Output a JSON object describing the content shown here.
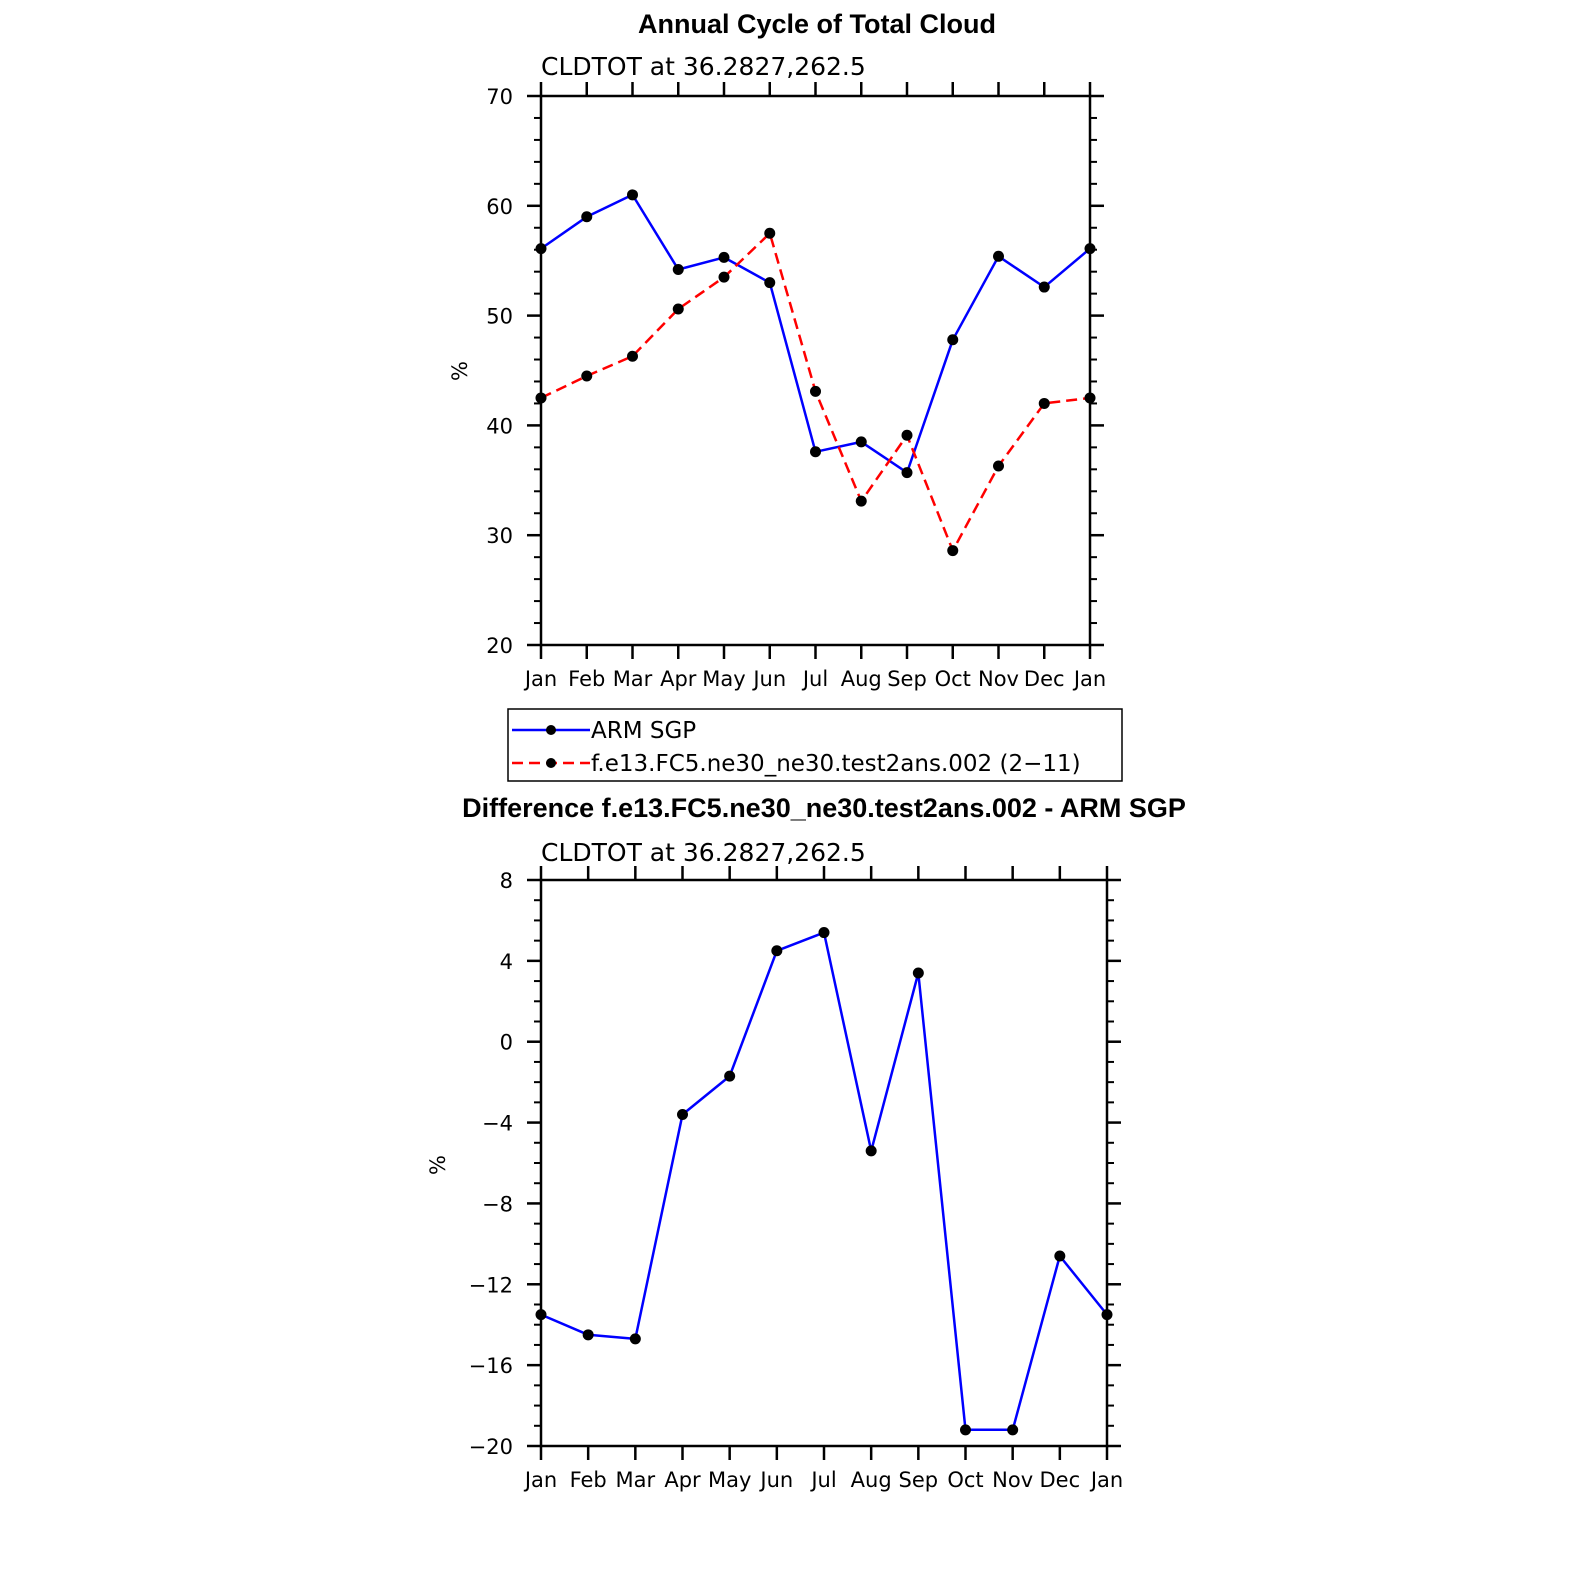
{
  "chart_data": [
    {
      "type": "line",
      "title": "Annual Cycle of Total Cloud",
      "subtitle": "CLDTOT at 36.2827,262.5",
      "ylabel": "%",
      "ylim": [
        20,
        70
      ],
      "yticks": [
        "20",
        "30",
        "40",
        "50",
        "60",
        "70"
      ],
      "categories": [
        "Jan",
        "Feb",
        "Mar",
        "Apr",
        "May",
        "Jun",
        "Jul",
        "Aug",
        "Sep",
        "Oct",
        "Nov",
        "Dec",
        "Jan"
      ],
      "series": [
        {
          "name": "ARM SGP",
          "color": "#0000ff",
          "dashed": false,
          "values": [
            56.1,
            59.0,
            61.0,
            54.2,
            55.3,
            53.0,
            37.6,
            38.5,
            35.7,
            47.8,
            55.4,
            52.6,
            56.1
          ]
        },
        {
          "name": "f.e13.FC5.ne30_ne30.test2ans.002 (2−11)",
          "color": "#ff0000",
          "dashed": true,
          "values": [
            42.5,
            44.5,
            46.3,
            50.6,
            53.5,
            57.5,
            43.1,
            33.1,
            39.1,
            28.6,
            36.3,
            42.0,
            42.5
          ]
        }
      ]
    },
    {
      "type": "line",
      "title": "Difference f.e13.FC5.ne30_ne30.test2ans.002 - ARM SGP",
      "subtitle": "CLDTOT at 36.2827,262.5",
      "ylabel": "%",
      "ylim": [
        -20,
        8
      ],
      "yticks": [
        "−20",
        "−16",
        "−12",
        "−8",
        "−4",
        "0",
        "4",
        "8"
      ],
      "categories": [
        "Jan",
        "Feb",
        "Mar",
        "Apr",
        "May",
        "Jun",
        "Jul",
        "Aug",
        "Sep",
        "Oct",
        "Nov",
        "Dec",
        "Jan"
      ],
      "series": [
        {
          "color": "#0000ff",
          "dashed": false,
          "values": [
            -13.5,
            -14.5,
            -14.7,
            -3.6,
            -1.7,
            4.5,
            5.4,
            -5.4,
            3.4,
            -19.2,
            -19.2,
            -10.6,
            -13.5
          ]
        }
      ]
    }
  ]
}
